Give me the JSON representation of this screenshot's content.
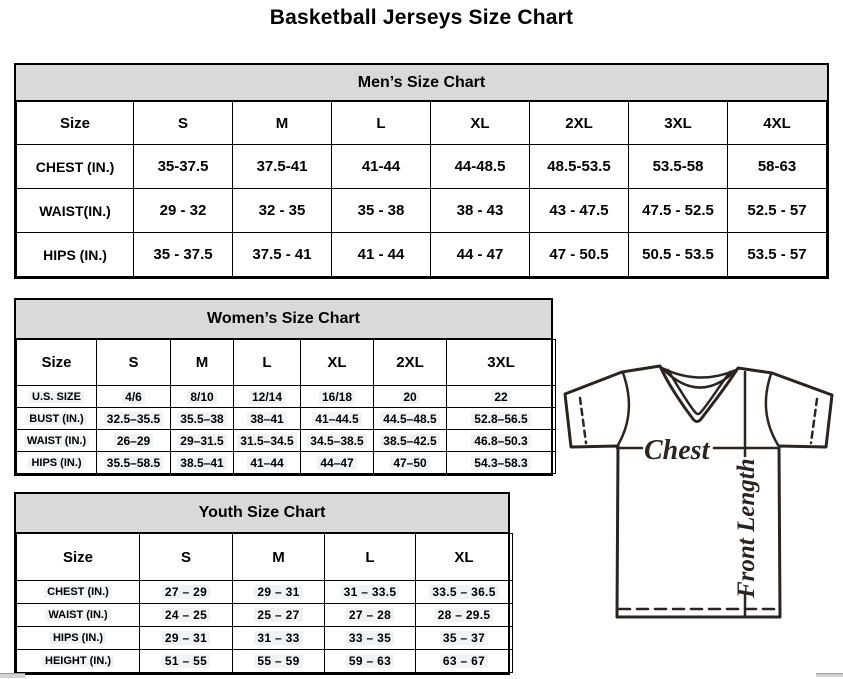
{
  "page": {
    "title": "Basketball Jerseys Size Chart"
  },
  "tables": {
    "men": {
      "title": "Men’s Size Chart",
      "size_label": "Size",
      "columns": [
        "S",
        "M",
        "L",
        "XL",
        "2XL",
        "3XL",
        "4XL"
      ],
      "rows": [
        {
          "label": "CHEST (IN.)",
          "values": [
            "35-37.5",
            "37.5-41",
            "41-44",
            "44-48.5",
            "48.5-53.5",
            "53.5-58",
            "58-63"
          ]
        },
        {
          "label": "WAIST(IN.)",
          "values": [
            "29 - 32",
            "32 - 35",
            "35 - 38",
            "38 - 43",
            "43 - 47.5",
            "47.5 - 52.5",
            "52.5 - 57"
          ]
        },
        {
          "label": "HIPS (IN.)",
          "values": [
            "35 - 37.5",
            "37.5 - 41",
            "41 - 44",
            "44 - 47",
            "47 - 50.5",
            "50.5 - 53.5",
            "53.5 - 57"
          ]
        }
      ]
    },
    "women": {
      "title": "Women’s Size Chart",
      "size_label": "Size",
      "columns": [
        "S",
        "M",
        "L",
        "XL",
        "2XL",
        "3XL"
      ],
      "rows": [
        {
          "label": "U.S. SIZE",
          "values": [
            "4/6",
            "8/10",
            "12/14",
            "16/18",
            "20",
            "22"
          ]
        },
        {
          "label": "BUST (IN.)",
          "values": [
            "32.5–35.5",
            "35.5–38",
            "38–41",
            "41–44.5",
            "44.5–48.5",
            "52.8–56.5"
          ]
        },
        {
          "label": "WAIST (IN.)",
          "values": [
            "26–29",
            "29–31.5",
            "31.5–34.5",
            "34.5–38.5",
            "38.5–42.5",
            "46.8–50.3"
          ]
        },
        {
          "label": "HIPS (IN.)",
          "values": [
            "35.5–58.5",
            "38.5–41",
            "41–44",
            "44–47",
            "47–50",
            "54.3–58.3"
          ]
        }
      ]
    },
    "youth": {
      "title": "Youth Size Chart",
      "size_label": "Size",
      "columns": [
        "S",
        "M",
        "L",
        "XL"
      ],
      "rows": [
        {
          "label": "CHEST (IN.)",
          "values": [
            "27 – 29",
            "29 – 31",
            "31 – 33.5",
            "33.5 – 36.5"
          ]
        },
        {
          "label": "WAIST (IN.)",
          "values": [
            "24 – 25",
            "25 – 27",
            "27 – 28",
            "28 – 29.5"
          ]
        },
        {
          "label": "HIPS (IN.)",
          "values": [
            "29 – 31",
            "31 – 33",
            "33 – 35",
            "35 – 37"
          ]
        },
        {
          "label": "HEIGHT (IN.)",
          "values": [
            "51 – 55",
            "55 – 59",
            "59 – 63",
            "63 – 67"
          ]
        }
      ]
    }
  },
  "diagram": {
    "chest_label": "Chest",
    "front_length_label": "Front Length",
    "stroke_color": "#2b2420"
  },
  "colors": {
    "header_bg": "#d9d9d9",
    "border": "#000000",
    "background": "#ffffff"
  }
}
